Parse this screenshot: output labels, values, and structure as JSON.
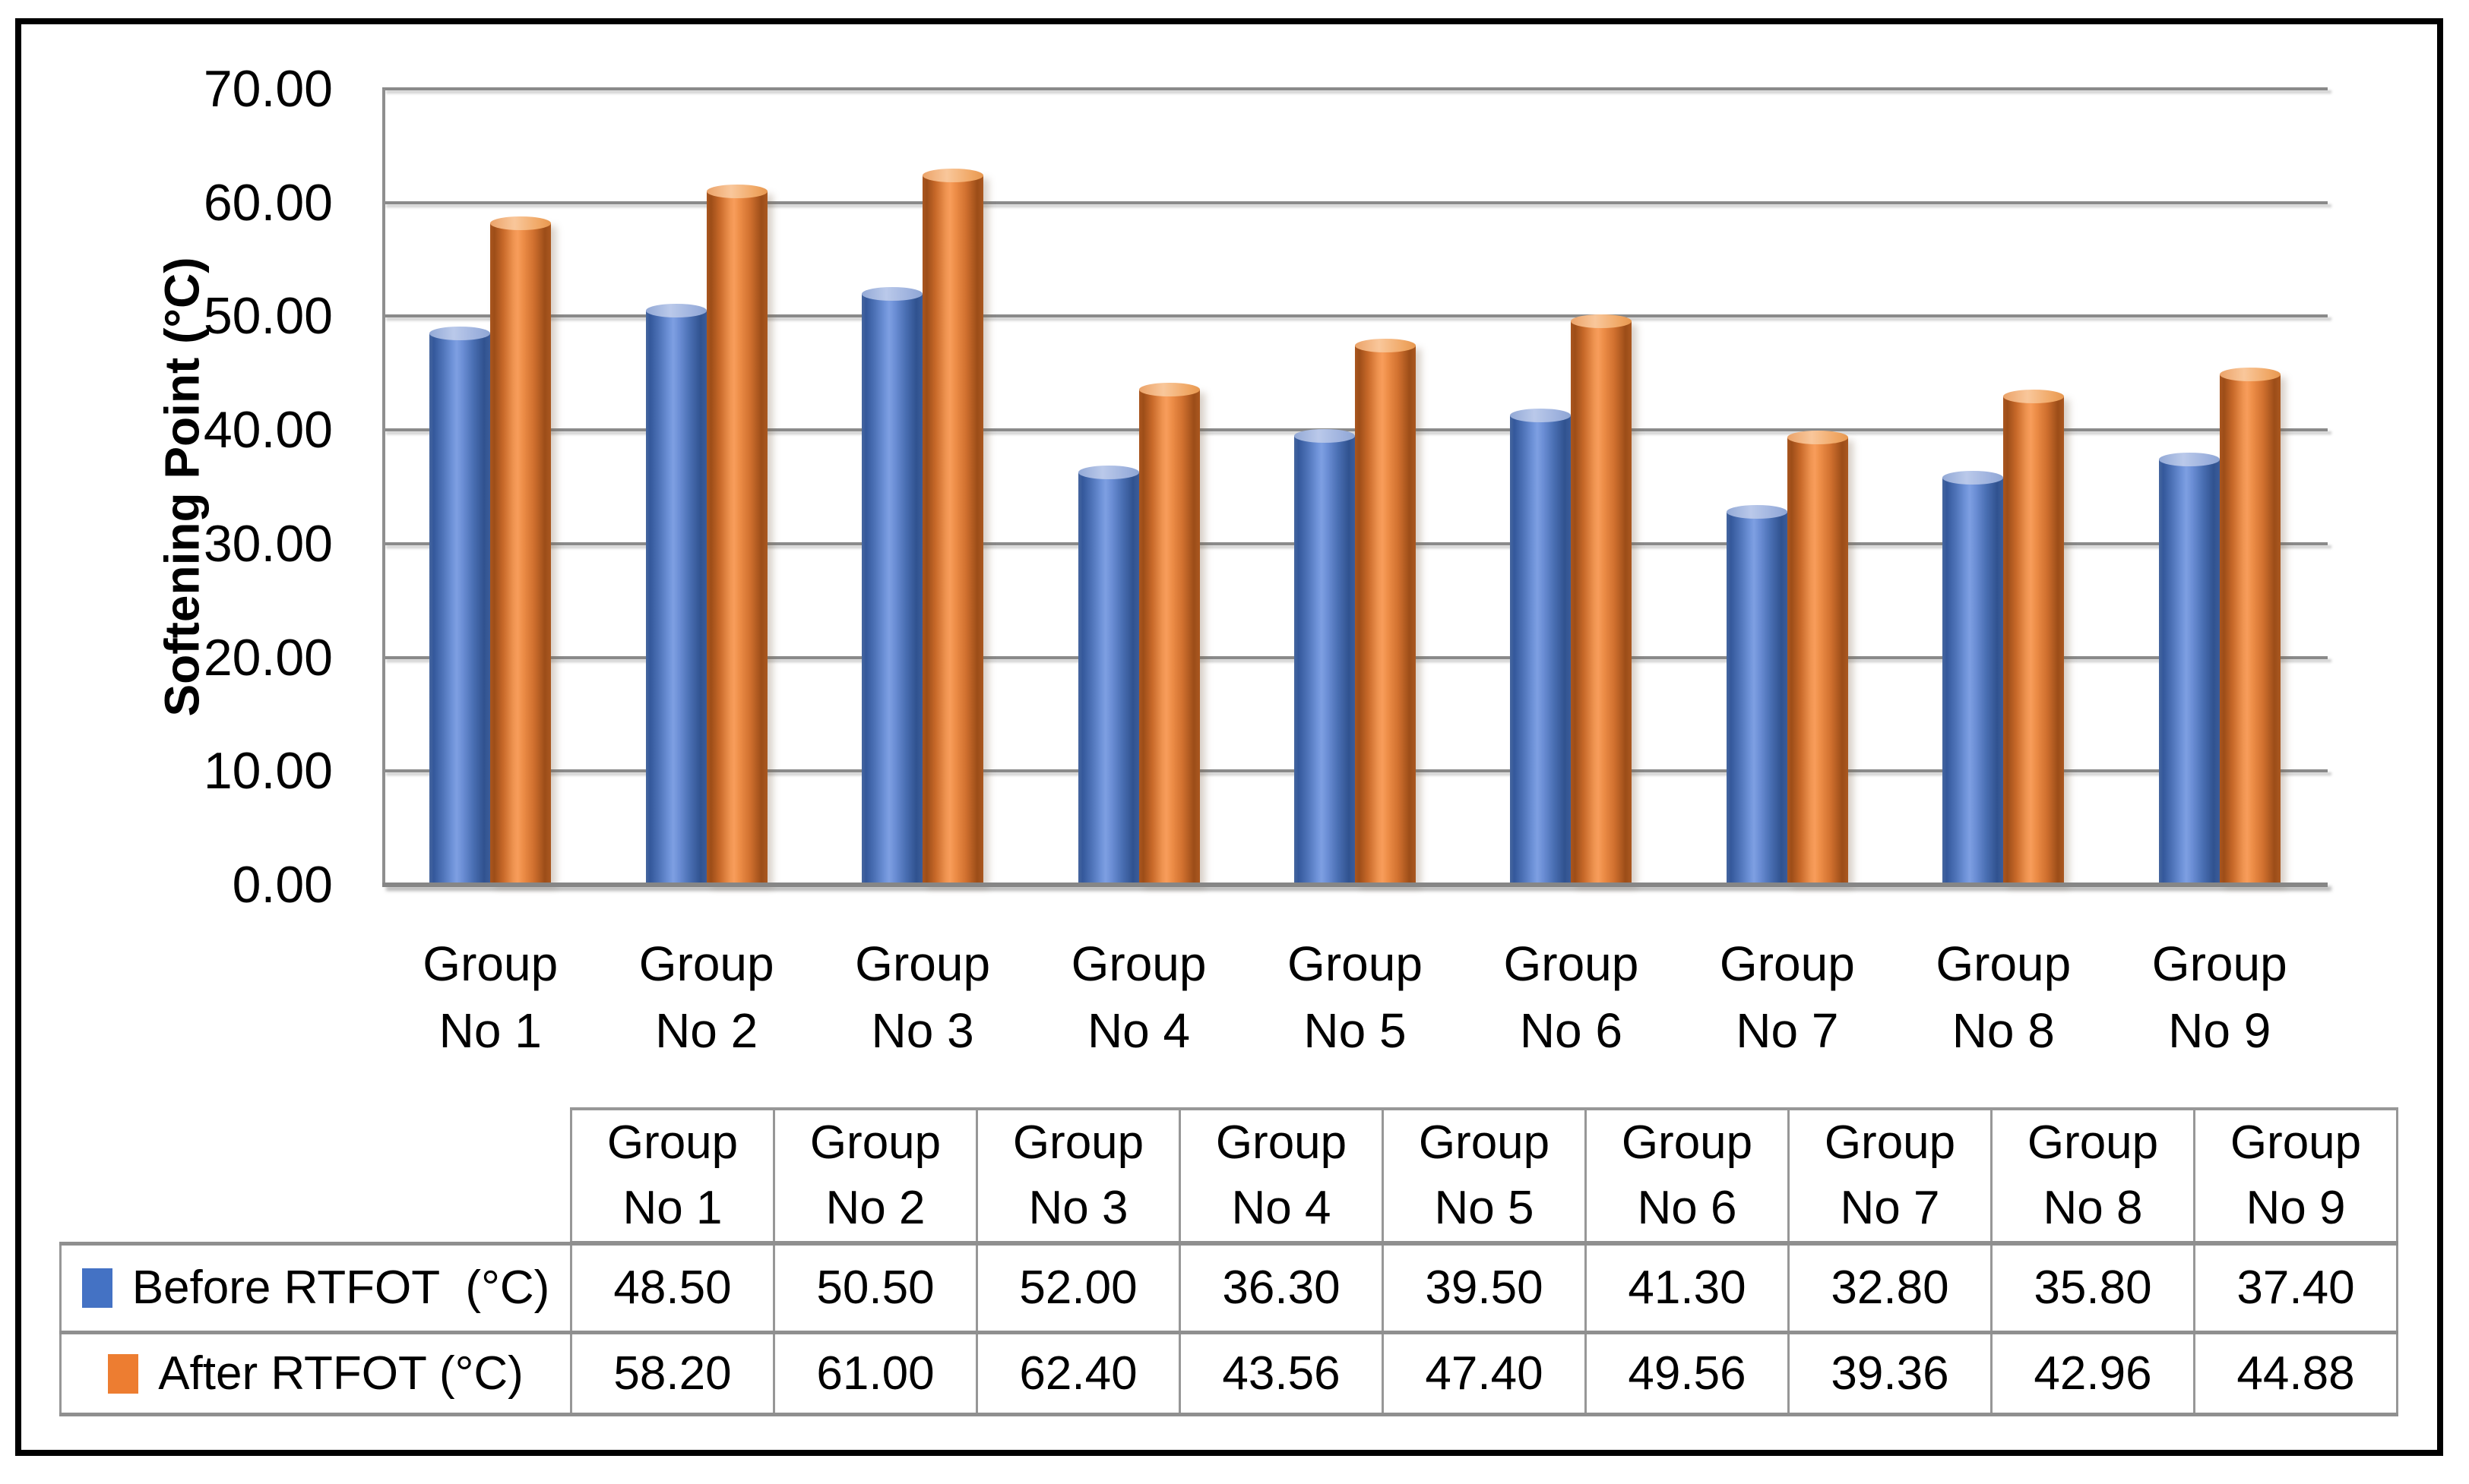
{
  "chart_data": {
    "type": "bar",
    "title": "",
    "ylabel": "Softening Point (°C)",
    "xlabel": "",
    "ylim": [
      0,
      70
    ],
    "ytick_step": 10,
    "yticks": [
      "70.00",
      "60.00",
      "50.00",
      "40.00",
      "30.00",
      "20.00",
      "10.00",
      "0.00"
    ],
    "grid": true,
    "legend_position": "table-rows-left",
    "categories": [
      "Group No 1",
      "Group No 2",
      "Group No 3",
      "Group No 4",
      "Group No 5",
      "Group No 6",
      "Group No 7",
      "Group No 8",
      "Group No 9"
    ],
    "series": [
      {
        "name": "Before RTFOT  (°C)",
        "color": "#4472C4",
        "values": [
          48.5,
          50.5,
          52.0,
          36.3,
          39.5,
          41.3,
          32.8,
          35.8,
          37.4
        ]
      },
      {
        "name": "After RTFOT (°C)",
        "color": "#ED7D31",
        "values": [
          58.2,
          61.0,
          62.4,
          43.56,
          47.4,
          49.56,
          39.36,
          42.96,
          44.88
        ]
      }
    ]
  },
  "table": {
    "headers": [
      {
        "top": "Group",
        "bottom": "No 1"
      },
      {
        "top": "Group",
        "bottom": "No 2"
      },
      {
        "top": "Group",
        "bottom": "No 3"
      },
      {
        "top": "Group",
        "bottom": "No 4"
      },
      {
        "top": "Group",
        "bottom": "No 5"
      },
      {
        "top": "Group",
        "bottom": "No 6"
      },
      {
        "top": "Group",
        "bottom": "No 7"
      },
      {
        "top": "Group",
        "bottom": "No 8"
      },
      {
        "top": "Group",
        "bottom": "No 9"
      }
    ],
    "rows": [
      {
        "label": "Before RTFOT  (°C)",
        "swatch_color": "#4472C4",
        "values": [
          "48.50",
          "50.50",
          "52.00",
          "36.30",
          "39.50",
          "41.30",
          "32.80",
          "35.80",
          "37.40"
        ]
      },
      {
        "label": "After RTFOT (°C)",
        "swatch_color": "#ED7D31",
        "values": [
          "58.20",
          "61.00",
          "62.40",
          "43.56",
          "47.40",
          "49.56",
          "39.36",
          "42.96",
          "44.88"
        ]
      }
    ]
  },
  "colors": {
    "series_blue": "#4472C4",
    "series_orange": "#ED7D31",
    "gridline": "#8A8A8A",
    "table_border": "#979797",
    "frame_border": "#000000"
  }
}
